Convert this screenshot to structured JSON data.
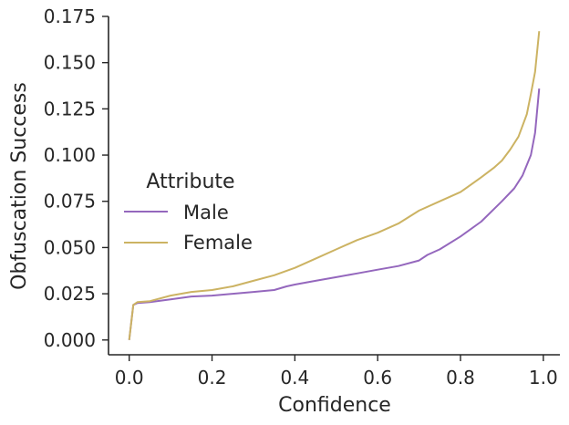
{
  "chart_data": {
    "type": "line",
    "title": "",
    "xlabel": "Confidence",
    "ylabel": "Obfuscation Success",
    "xlim": [
      -0.05,
      1.04
    ],
    "ylim": [
      -0.008,
      0.175
    ],
    "xticks": [
      0.0,
      0.2,
      0.4,
      0.6,
      0.8,
      1.0
    ],
    "xtick_labels": [
      "0.0",
      "0.2",
      "0.4",
      "0.6",
      "0.8",
      "1.0"
    ],
    "yticks": [
      0.0,
      0.025,
      0.05,
      0.075,
      0.1,
      0.125,
      0.15,
      0.175
    ],
    "ytick_labels": [
      "0.000",
      "0.025",
      "0.050",
      "0.075",
      "0.100",
      "0.125",
      "0.150",
      "0.175"
    ],
    "grid": false,
    "legend": {
      "title": "Attribute",
      "position": "center-left"
    },
    "series": [
      {
        "name": "Male",
        "color": "#9467bd",
        "x": [
          0.0,
          0.01,
          0.02,
          0.05,
          0.1,
          0.15,
          0.2,
          0.25,
          0.3,
          0.35,
          0.38,
          0.4,
          0.45,
          0.5,
          0.55,
          0.6,
          0.65,
          0.7,
          0.72,
          0.75,
          0.8,
          0.85,
          0.9,
          0.93,
          0.95,
          0.97,
          0.98,
          0.99
        ],
        "y": [
          0.0,
          0.019,
          0.02,
          0.0205,
          0.022,
          0.0235,
          0.024,
          0.025,
          0.026,
          0.027,
          0.029,
          0.03,
          0.032,
          0.034,
          0.036,
          0.038,
          0.04,
          0.043,
          0.046,
          0.049,
          0.056,
          0.064,
          0.075,
          0.082,
          0.089,
          0.1,
          0.112,
          0.136
        ]
      },
      {
        "name": "Female",
        "color": "#ccb363",
        "x": [
          0.0,
          0.01,
          0.02,
          0.05,
          0.1,
          0.15,
          0.2,
          0.25,
          0.3,
          0.35,
          0.4,
          0.45,
          0.5,
          0.55,
          0.6,
          0.65,
          0.7,
          0.75,
          0.8,
          0.85,
          0.88,
          0.9,
          0.92,
          0.94,
          0.96,
          0.97,
          0.98,
          0.99
        ],
        "y": [
          0.0,
          0.019,
          0.0205,
          0.021,
          0.024,
          0.026,
          0.027,
          0.029,
          0.032,
          0.035,
          0.039,
          0.044,
          0.049,
          0.054,
          0.058,
          0.063,
          0.07,
          0.075,
          0.08,
          0.088,
          0.093,
          0.097,
          0.103,
          0.11,
          0.122,
          0.133,
          0.145,
          0.167
        ]
      }
    ]
  }
}
